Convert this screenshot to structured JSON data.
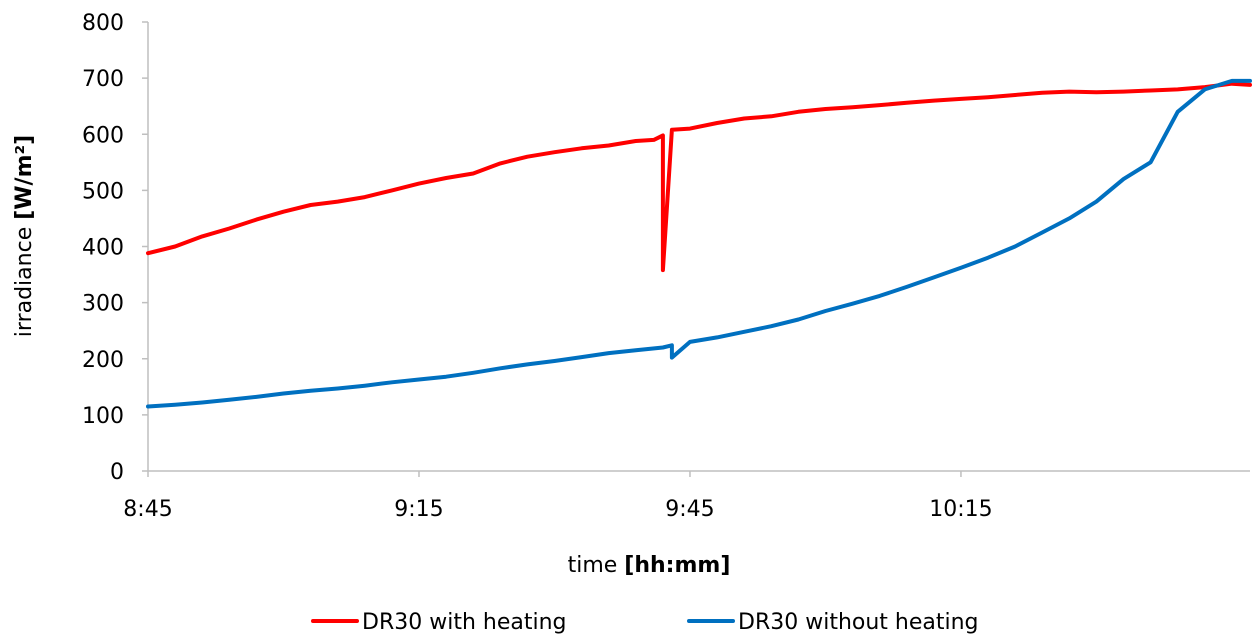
{
  "chart_data": {
    "type": "line",
    "xlabel": {
      "prefix": "time ",
      "unit": "[hh:mm]"
    },
    "ylabel": {
      "prefix": "irradiance ",
      "unit": "[W/m²]"
    },
    "xlim": [
      "8:45",
      "10:47"
    ],
    "ylim": [
      0,
      800
    ],
    "x_ticks": [
      "8:45",
      "9:15",
      "9:45",
      "10:15"
    ],
    "y_ticks": [
      0,
      100,
      200,
      300,
      400,
      500,
      600,
      700,
      800
    ],
    "grid": false,
    "legend_position": "bottom",
    "series": [
      {
        "name": "DR30 with heating",
        "color": "#ff0000",
        "x": [
          "8:45",
          "8:48",
          "8:51",
          "8:54",
          "8:57",
          "9:00",
          "9:03",
          "9:06",
          "9:09",
          "9:12",
          "9:15",
          "9:18",
          "9:21",
          "9:24",
          "9:27",
          "9:30",
          "9:33",
          "9:36",
          "9:39",
          "9:41",
          "9:42",
          "9:42",
          "9:43",
          "9:45",
          "9:48",
          "9:51",
          "9:54",
          "9:57",
          "10:00",
          "10:03",
          "10:06",
          "10:09",
          "10:12",
          "10:15",
          "10:18",
          "10:21",
          "10:24",
          "10:27",
          "10:30",
          "10:33",
          "10:36",
          "10:39",
          "10:42",
          "10:45",
          "10:47"
        ],
        "y": [
          388,
          400,
          418,
          432,
          448,
          462,
          474,
          480,
          488,
          500,
          512,
          522,
          530,
          548,
          560,
          568,
          575,
          580,
          588,
          590,
          598,
          358,
          608,
          610,
          620,
          628,
          632,
          640,
          645,
          648,
          652,
          656,
          660,
          663,
          666,
          670,
          674,
          676,
          675,
          676,
          678,
          680,
          684,
          690,
          688
        ]
      },
      {
        "name": "DR30 without heating",
        "color": "#0070c0",
        "x": [
          "8:45",
          "8:48",
          "8:51",
          "8:54",
          "8:57",
          "9:00",
          "9:03",
          "9:06",
          "9:09",
          "9:12",
          "9:15",
          "9:18",
          "9:21",
          "9:24",
          "9:27",
          "9:30",
          "9:33",
          "9:36",
          "9:39",
          "9:42",
          "9:43",
          "9:43",
          "9:45",
          "9:48",
          "9:51",
          "9:54",
          "9:57",
          "10:00",
          "10:03",
          "10:06",
          "10:09",
          "10:12",
          "10:15",
          "10:18",
          "10:21",
          "10:24",
          "10:27",
          "10:30",
          "10:33",
          "10:36",
          "10:39",
          "10:42",
          "10:45",
          "10:47"
        ],
        "y": [
          115,
          118,
          122,
          127,
          132,
          138,
          143,
          147,
          152,
          158,
          163,
          168,
          175,
          183,
          190,
          196,
          203,
          210,
          215,
          220,
          224,
          202,
          230,
          238,
          248,
          258,
          270,
          285,
          298,
          312,
          328,
          345,
          362,
          380,
          400,
          425,
          450,
          480,
          520,
          550,
          640,
          680,
          695,
          695
        ]
      }
    ]
  }
}
